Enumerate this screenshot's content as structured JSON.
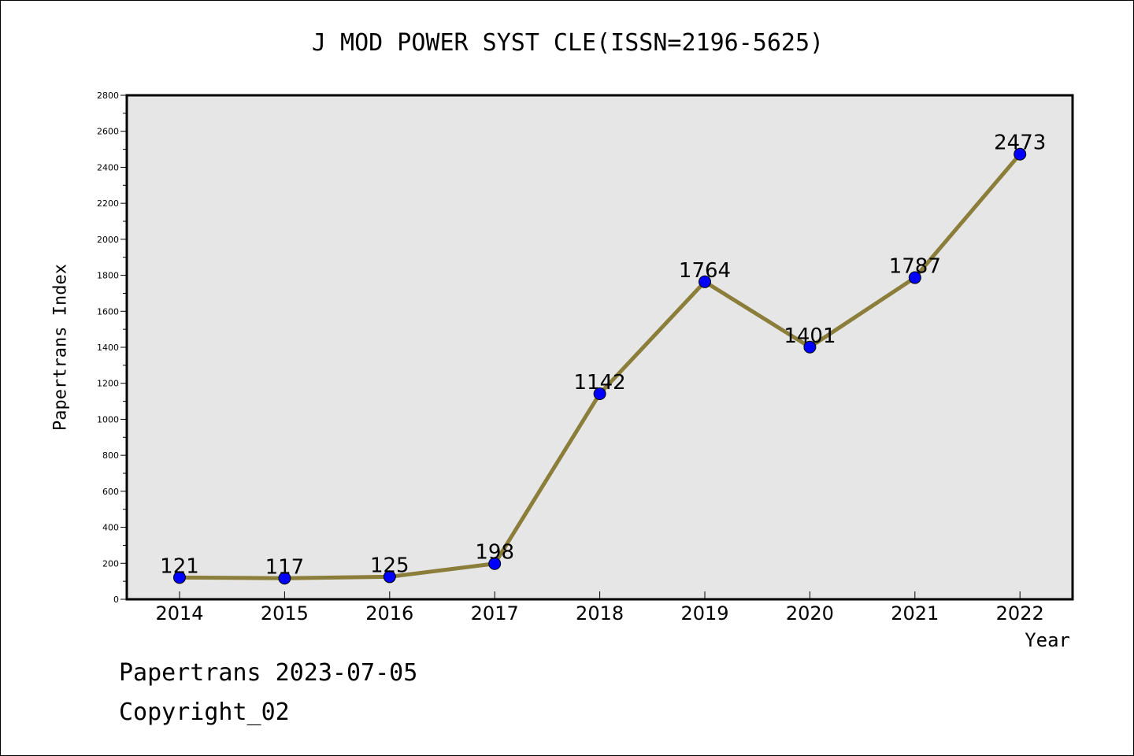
{
  "title": "J MOD POWER SYST CLE(ISSN=2196-5625)",
  "footer": {
    "date_line": "Papertrans 2023-07-05",
    "copyright_line": "Copyright_02"
  },
  "colors": {
    "plot_background": "#e6e6e6",
    "line": "#8b7d3a",
    "marker": "#0000ff"
  },
  "chart_data": {
    "type": "line",
    "title": "J MOD POWER SYST CLE(ISSN=2196-5625)",
    "xlabel": "Year",
    "ylabel": "Papertrans Index",
    "categories": [
      "2014",
      "2015",
      "2016",
      "2017",
      "2018",
      "2019",
      "2020",
      "2021",
      "2022"
    ],
    "series": [
      {
        "values": [
          121,
          117,
          125,
          198,
          1142,
          1764,
          1401,
          1787,
          2473
        ]
      }
    ],
    "data_labels": [
      "121",
      "117",
      "125",
      "198",
      "1142",
      "1764",
      "1401",
      "1787",
      "2473"
    ],
    "ylim": [
      0,
      2800
    ],
    "yticks": [
      0,
      200,
      400,
      600,
      800,
      1000,
      1200,
      1400,
      1600,
      1800,
      2000,
      2200,
      2400,
      2600,
      2800
    ],
    "grid": false,
    "legend": "none"
  }
}
